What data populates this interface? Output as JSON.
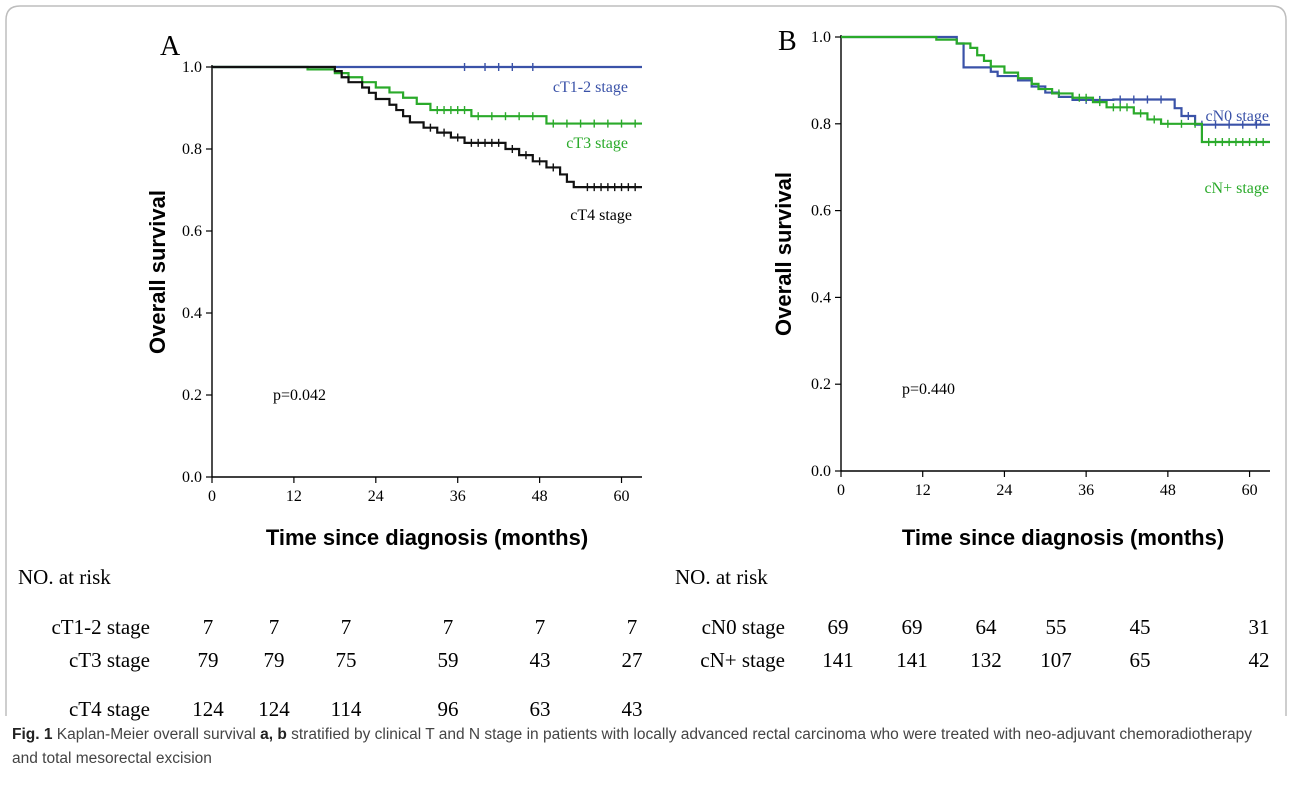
{
  "chart_data": [
    {
      "panel": "A",
      "type": "line",
      "xlabel": "Time since diagnosis (months)",
      "ylabel": "Overall survival",
      "xlim": [
        0,
        63
      ],
      "ylim": [
        0.0,
        1.0
      ],
      "x_ticks": [
        "0",
        "12",
        "24",
        "36",
        "48",
        "60"
      ],
      "y_ticks": [
        "0.0",
        "0.2",
        "0.4",
        "0.6",
        "0.8",
        "1.0"
      ],
      "annotation": "p=0.042",
      "series": [
        {
          "name": "cT1-2 stage",
          "color": "#3a52a8",
          "steps": [
            [
              0,
              1.0
            ],
            [
              63,
              1.0
            ]
          ],
          "censors": [
            [
              37,
              1.0
            ],
            [
              40,
              1.0
            ],
            [
              42,
              1.0
            ],
            [
              44,
              1.0
            ],
            [
              47,
              1.0
            ]
          ]
        },
        {
          "name": "cT3 stage",
          "color": "#2aaa2a",
          "steps": [
            [
              0,
              1.0
            ],
            [
              14,
              1.0
            ],
            [
              14,
              0.994
            ],
            [
              18,
              0.994
            ],
            [
              18,
              0.985
            ],
            [
              20,
              0.985
            ],
            [
              20,
              0.975
            ],
            [
              22,
              0.975
            ],
            [
              22,
              0.963
            ],
            [
              24,
              0.963
            ],
            [
              24,
              0.95
            ],
            [
              26,
              0.95
            ],
            [
              26,
              0.938
            ],
            [
              28,
              0.938
            ],
            [
              28,
              0.925
            ],
            [
              30,
              0.925
            ],
            [
              30,
              0.91
            ],
            [
              32,
              0.91
            ],
            [
              32,
              0.895
            ],
            [
              38,
              0.895
            ],
            [
              38,
              0.88
            ],
            [
              49,
              0.88
            ],
            [
              49,
              0.862
            ],
            [
              63,
              0.862
            ]
          ],
          "censors": [
            [
              33,
              0.895
            ],
            [
              34,
              0.895
            ],
            [
              35,
              0.895
            ],
            [
              36,
              0.895
            ],
            [
              37,
              0.895
            ],
            [
              39,
              0.88
            ],
            [
              41,
              0.88
            ],
            [
              43,
              0.88
            ],
            [
              45,
              0.88
            ],
            [
              47,
              0.88
            ],
            [
              50,
              0.862
            ],
            [
              52,
              0.862
            ],
            [
              54,
              0.862
            ],
            [
              56,
              0.862
            ],
            [
              58,
              0.862
            ],
            [
              60,
              0.862
            ],
            [
              62,
              0.862
            ]
          ]
        },
        {
          "name": "cT4 stage",
          "color": "#111111",
          "steps": [
            [
              0,
              1.0
            ],
            [
              18,
              1.0
            ],
            [
              18,
              0.99
            ],
            [
              19,
              0.99
            ],
            [
              19,
              0.975
            ],
            [
              20,
              0.975
            ],
            [
              20,
              0.963
            ],
            [
              22,
              0.963
            ],
            [
              22,
              0.95
            ],
            [
              23,
              0.95
            ],
            [
              23,
              0.937
            ],
            [
              24,
              0.937
            ],
            [
              24,
              0.922
            ],
            [
              26,
              0.922
            ],
            [
              26,
              0.908
            ],
            [
              27,
              0.908
            ],
            [
              27,
              0.895
            ],
            [
              28,
              0.895
            ],
            [
              28,
              0.88
            ],
            [
              29,
              0.88
            ],
            [
              29,
              0.865
            ],
            [
              31,
              0.865
            ],
            [
              31,
              0.852
            ],
            [
              33,
              0.852
            ],
            [
              33,
              0.84
            ],
            [
              35,
              0.84
            ],
            [
              35,
              0.828
            ],
            [
              37,
              0.828
            ],
            [
              37,
              0.815
            ],
            [
              43,
              0.815
            ],
            [
              43,
              0.8
            ],
            [
              45,
              0.8
            ],
            [
              45,
              0.785
            ],
            [
              47,
              0.785
            ],
            [
              47,
              0.77
            ],
            [
              49,
              0.77
            ],
            [
              49,
              0.755
            ],
            [
              51,
              0.755
            ],
            [
              51,
              0.738
            ],
            [
              52,
              0.738
            ],
            [
              52,
              0.72
            ],
            [
              53,
              0.72
            ],
            [
              53,
              0.707
            ],
            [
              63,
              0.707
            ]
          ],
          "censors": [
            [
              32,
              0.852
            ],
            [
              34,
              0.84
            ],
            [
              36,
              0.828
            ],
            [
              38,
              0.815
            ],
            [
              39,
              0.815
            ],
            [
              40,
              0.815
            ],
            [
              41,
              0.815
            ],
            [
              42,
              0.815
            ],
            [
              44,
              0.8
            ],
            [
              46,
              0.785
            ],
            [
              48,
              0.77
            ],
            [
              50,
              0.755
            ],
            [
              55,
              0.707
            ],
            [
              56,
              0.707
            ],
            [
              57,
              0.707
            ],
            [
              58,
              0.707
            ],
            [
              59,
              0.707
            ],
            [
              60,
              0.707
            ],
            [
              61,
              0.707
            ],
            [
              62,
              0.707
            ]
          ]
        }
      ]
    },
    {
      "panel": "B",
      "type": "line",
      "xlabel": "Time since diagnosis (months)",
      "ylabel": "Overall survival",
      "xlim": [
        0,
        63
      ],
      "ylim": [
        0.0,
        1.0
      ],
      "x_ticks": [
        "0",
        "12",
        "24",
        "36",
        "48",
        "60"
      ],
      "y_ticks": [
        "0.0",
        "0.2",
        "0.4",
        "0.6",
        "0.8",
        "1.0"
      ],
      "annotation": "p=0.440",
      "series": [
        {
          "name": "cN0 stage",
          "color": "#3a52a8",
          "steps": [
            [
              0,
              1.0
            ],
            [
              17,
              1.0
            ],
            [
              17,
              0.985
            ],
            [
              18,
              0.985
            ],
            [
              18,
              0.93
            ],
            [
              22,
              0.93
            ],
            [
              22,
              0.92
            ],
            [
              23,
              0.92
            ],
            [
              23,
              0.91
            ],
            [
              26,
              0.91
            ],
            [
              26,
              0.9
            ],
            [
              28,
              0.9
            ],
            [
              28,
              0.886
            ],
            [
              30,
              0.886
            ],
            [
              30,
              0.872
            ],
            [
              32,
              0.872
            ],
            [
              32,
              0.862
            ],
            [
              34,
              0.862
            ],
            [
              34,
              0.855
            ],
            [
              40,
              0.855
            ],
            [
              40,
              0.856
            ],
            [
              49,
              0.856
            ],
            [
              49,
              0.836
            ],
            [
              50,
              0.836
            ],
            [
              50,
              0.818
            ],
            [
              52,
              0.818
            ],
            [
              52,
              0.798
            ],
            [
              63,
              0.798
            ]
          ],
          "censors": [
            [
              36,
              0.855
            ],
            [
              38,
              0.855
            ],
            [
              41,
              0.856
            ],
            [
              43,
              0.856
            ],
            [
              45,
              0.856
            ],
            [
              47,
              0.856
            ],
            [
              51,
              0.818
            ],
            [
              53,
              0.798
            ],
            [
              55,
              0.798
            ],
            [
              57,
              0.798
            ],
            [
              59,
              0.798
            ],
            [
              61,
              0.798
            ]
          ]
        },
        {
          "name": "cN+ stage",
          "color": "#2aaa2a",
          "steps": [
            [
              0,
              1.0
            ],
            [
              14,
              1.0
            ],
            [
              14,
              0.994
            ],
            [
              17,
              0.994
            ],
            [
              17,
              0.985
            ],
            [
              19,
              0.985
            ],
            [
              19,
              0.975
            ],
            [
              20,
              0.975
            ],
            [
              20,
              0.958
            ],
            [
              21,
              0.958
            ],
            [
              21,
              0.945
            ],
            [
              22,
              0.945
            ],
            [
              22,
              0.932
            ],
            [
              24,
              0.932
            ],
            [
              24,
              0.918
            ],
            [
              26,
              0.918
            ],
            [
              26,
              0.905
            ],
            [
              28,
              0.905
            ],
            [
              28,
              0.892
            ],
            [
              29,
              0.892
            ],
            [
              29,
              0.88
            ],
            [
              31,
              0.88
            ],
            [
              31,
              0.87
            ],
            [
              34,
              0.87
            ],
            [
              34,
              0.86
            ],
            [
              37,
              0.86
            ],
            [
              37,
              0.85
            ],
            [
              39,
              0.85
            ],
            [
              39,
              0.838
            ],
            [
              43,
              0.838
            ],
            [
              43,
              0.824
            ],
            [
              45,
              0.824
            ],
            [
              45,
              0.81
            ],
            [
              47,
              0.81
            ],
            [
              47,
              0.8
            ],
            [
              53,
              0.8
            ],
            [
              53,
              0.758
            ],
            [
              63,
              0.758
            ]
          ],
          "censors": [
            [
              32,
              0.87
            ],
            [
              35,
              0.86
            ],
            [
              36,
              0.86
            ],
            [
              38,
              0.85
            ],
            [
              40,
              0.838
            ],
            [
              41,
              0.838
            ],
            [
              42,
              0.838
            ],
            [
              44,
              0.824
            ],
            [
              46,
              0.81
            ],
            [
              48,
              0.8
            ],
            [
              50,
              0.8
            ],
            [
              52,
              0.8
            ],
            [
              54,
              0.758
            ],
            [
              55,
              0.758
            ],
            [
              56,
              0.758
            ],
            [
              57,
              0.758
            ],
            [
              58,
              0.758
            ],
            [
              59,
              0.758
            ],
            [
              60,
              0.758
            ],
            [
              61,
              0.758
            ],
            [
              62,
              0.758
            ]
          ]
        }
      ]
    }
  ],
  "risk_tables": [
    {
      "title": "NO. at risk",
      "rows": [
        {
          "label": "cT1-2 stage",
          "values": [
            "7",
            "7",
            "7",
            "7",
            "7",
            "7"
          ]
        },
        {
          "label": "cT3 stage",
          "values": [
            "79",
            "79",
            "75",
            "59",
            "43",
            "27"
          ]
        },
        {
          "label": "cT4 stage",
          "values": [
            "124",
            "124",
            "114",
            "96",
            "63",
            "43"
          ]
        }
      ]
    },
    {
      "title": "NO. at risk",
      "rows": [
        {
          "label": "cN0 stage",
          "values": [
            "69",
            "69",
            "64",
            "55",
            "45",
            "31"
          ]
        },
        {
          "label": "cN+ stage",
          "values": [
            "141",
            "141",
            "132",
            "107",
            "65",
            "42"
          ]
        }
      ]
    }
  ],
  "caption": {
    "fig_label": "Fig. 1",
    "text_1": " Kaplan-Meier overall survival ",
    "bold_ab": "a, b",
    "text_2": " stratified by clinical T and N stage in patients with locally advanced rectal carcinoma who were treated with neo-adjuvant chemoradiotherapy and total mesorectal excision"
  }
}
